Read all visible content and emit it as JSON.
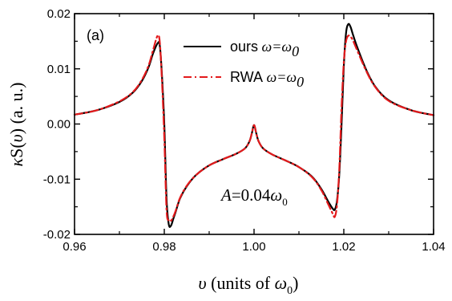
{
  "chart_data": {
    "type": "line",
    "panel_label": "(a)",
    "xlabel": {
      "symbol": "υ",
      "text": " (units of ",
      "unit": "ω",
      "unit_sub": "0",
      "close": ")"
    },
    "ylabel": {
      "kappa": "κ",
      "S": "S(",
      "nu": "υ",
      "rest": ") (a. u.)"
    },
    "xlim": [
      0.96,
      1.04
    ],
    "ylim": [
      -0.02,
      0.02
    ],
    "x_ticks": [
      0.96,
      0.98,
      1.0,
      1.02,
      1.04
    ],
    "x_tick_labels": [
      "0.96",
      "0.98",
      "1.00",
      "1.02",
      "1.04"
    ],
    "y_ticks": [
      -0.02,
      -0.01,
      0.0,
      0.01,
      0.02
    ],
    "y_tick_labels": [
      "-0.02",
      "-0.01",
      "0.00",
      "0.01",
      "0.02"
    ],
    "annotation": {
      "A": "A",
      "eq": "=0.04",
      "omega": "ω",
      "sub": "0"
    },
    "legend": {
      "placement": "top-right"
    },
    "series": [
      {
        "name": "ours",
        "name_suffix": " ω=ω",
        "name_sub": "0",
        "color": "#000000",
        "style": "solid",
        "x": [
          0.96,
          0.965,
          0.97,
          0.973,
          0.975,
          0.9765,
          0.9775,
          0.9785,
          0.979,
          0.9795,
          0.98,
          0.9805,
          0.981,
          0.9815,
          0.982,
          0.9825,
          0.9835,
          0.985,
          0.987,
          0.99,
          0.993,
          0.996,
          0.998,
          0.999,
          0.9995,
          1.0,
          1.0005,
          1.001,
          1.002,
          1.004,
          1.007,
          1.01,
          1.013,
          1.015,
          1.0165,
          1.0175,
          1.018,
          1.0185,
          1.019,
          1.0195,
          1.02,
          1.0205,
          1.021,
          1.0215,
          1.022,
          1.023,
          1.025,
          1.027,
          1.03,
          1.035,
          1.04
        ],
        "y": [
          0.0017,
          0.0025,
          0.004,
          0.0057,
          0.0078,
          0.0103,
          0.0128,
          0.0146,
          0.0142,
          0.0085,
          0.0,
          -0.0135,
          -0.0182,
          -0.0184,
          -0.0172,
          -0.016,
          -0.0135,
          -0.0113,
          -0.0093,
          -0.0075,
          -0.0064,
          -0.0054,
          -0.0044,
          -0.0031,
          -0.0017,
          -0.0002,
          -0.0017,
          -0.0031,
          -0.0044,
          -0.0055,
          -0.0066,
          -0.0078,
          -0.0096,
          -0.0118,
          -0.014,
          -0.0153,
          -0.0155,
          -0.0138,
          -0.009,
          0.0,
          0.0105,
          0.0165,
          0.0181,
          0.0176,
          0.0163,
          0.0139,
          0.0098,
          0.0068,
          0.0043,
          0.0025,
          0.0016
        ]
      },
      {
        "name": "RWA",
        "name_suffix": " ω=ω",
        "name_sub": "0",
        "color": "#e31a1c",
        "style": "dash-dot",
        "x": [
          0.96,
          0.965,
          0.97,
          0.973,
          0.975,
          0.9765,
          0.9775,
          0.9785,
          0.979,
          0.9795,
          0.98,
          0.9805,
          0.981,
          0.9815,
          0.982,
          0.9825,
          0.9835,
          0.985,
          0.987,
          0.99,
          0.993,
          0.996,
          0.998,
          0.999,
          0.9995,
          1.0,
          1.0005,
          1.001,
          1.002,
          1.004,
          1.007,
          1.01,
          1.013,
          1.015,
          1.0165,
          1.0175,
          1.018,
          1.0185,
          1.019,
          1.0195,
          1.02,
          1.0205,
          1.021,
          1.0215,
          1.022,
          1.023,
          1.025,
          1.027,
          1.03,
          1.035,
          1.04
        ],
        "y": [
          0.0017,
          0.0025,
          0.0041,
          0.0058,
          0.008,
          0.0106,
          0.0134,
          0.016,
          0.0148,
          0.0075,
          -0.0025,
          -0.0155,
          -0.0175,
          -0.0175,
          -0.0168,
          -0.0158,
          -0.0134,
          -0.0112,
          -0.0093,
          -0.0075,
          -0.0064,
          -0.0054,
          -0.0044,
          -0.0031,
          -0.0017,
          -0.0002,
          -0.0017,
          -0.0031,
          -0.0044,
          -0.0055,
          -0.0066,
          -0.0078,
          -0.0097,
          -0.012,
          -0.0145,
          -0.0162,
          -0.0168,
          -0.0145,
          -0.008,
          0.003,
          0.0112,
          0.015,
          0.016,
          0.0158,
          0.0152,
          0.0133,
          0.0096,
          0.0067,
          0.0042,
          0.0025,
          0.0016
        ]
      }
    ]
  }
}
